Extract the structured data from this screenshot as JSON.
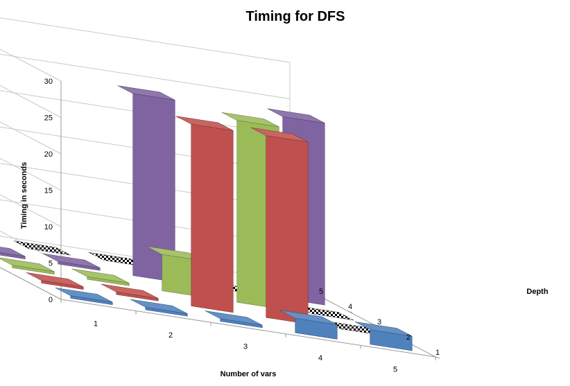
{
  "chart_data": {
    "type": "bar3d",
    "title": "Timing for DFS",
    "xlabel": "Number of vars",
    "ylabel": "Timing in seconds",
    "zlabel": "Depth",
    "x_categories": [
      "1",
      "2",
      "3",
      "4",
      "5"
    ],
    "depth_categories": [
      "1",
      "2",
      "3",
      "4",
      "5"
    ],
    "ylim": [
      0,
      30
    ],
    "yticks": [
      0,
      5,
      10,
      15,
      20,
      25,
      30
    ],
    "colors": {
      "1": "#4f81bd",
      "2": "#c0504d",
      "3": "#9bbb59",
      "4": "#8064a2",
      "5": "#4bacc6",
      "missing": "checkered"
    },
    "series": [
      {
        "depth": "1",
        "values": [
          0,
          0,
          0,
          2,
          2
        ]
      },
      {
        "depth": "2",
        "values": [
          0,
          0,
          25,
          25,
          null
        ]
      },
      {
        "depth": "3",
        "values": [
          0,
          0,
          5,
          25,
          null
        ]
      },
      {
        "depth": "4",
        "values": [
          0,
          0,
          25,
          null,
          25
        ]
      },
      {
        "depth": "5",
        "values": [
          0,
          null,
          null,
          null,
          null
        ]
      }
    ]
  }
}
